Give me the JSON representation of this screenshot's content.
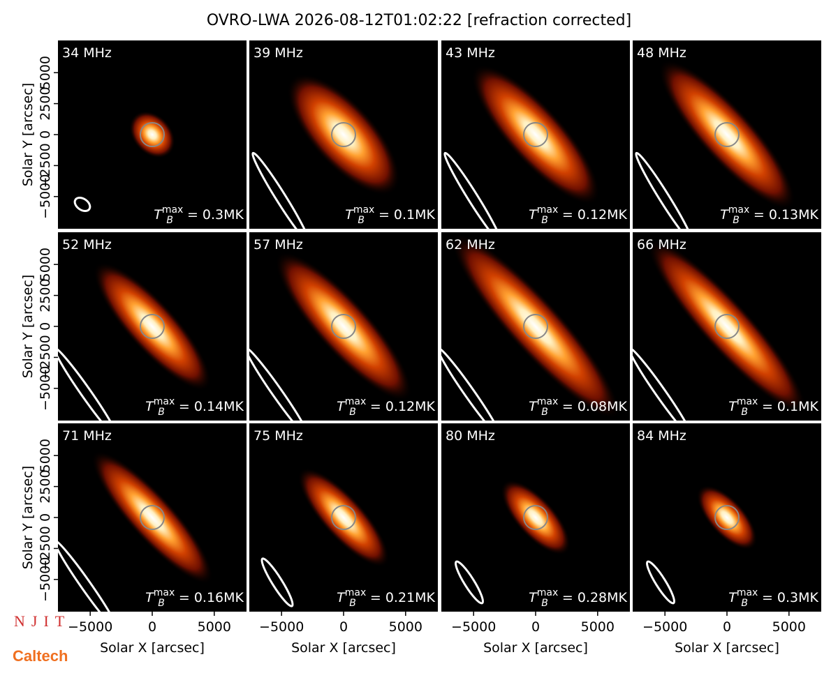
{
  "chart_data": {
    "type": "image-grid",
    "title": "OVRO-LWA 2026-08-12T01:02:22 [refraction corrected]",
    "xlabel": "Solar X [arcsec]",
    "ylabel": "Solar Y [arcsec]",
    "xlim": [
      -7600,
      7600
    ],
    "ylim": [
      -7600,
      7600
    ],
    "xticks": [
      {
        "value": -5000,
        "label": "−5000"
      },
      0,
      5000
    ],
    "yticks": [
      {
        "value": -5000,
        "label": "−5000"
      },
      {
        "value": -2500,
        "label": "−2500"
      },
      0,
      2500,
      5000
    ],
    "tb_symbol": {
      "base": "T",
      "sub": "B",
      "sup": "max"
    },
    "panels": [
      {
        "label": "34 MHz",
        "annotation": "= 0.3MK"
      },
      {
        "label": "39 MHz",
        "annotation": "= 0.1MK"
      },
      {
        "label": "43 MHz",
        "annotation": "= 0.12MK"
      },
      {
        "label": "48 MHz",
        "annotation": "= 0.13MK"
      },
      {
        "label": "52 MHz",
        "annotation": "= 0.14MK"
      },
      {
        "label": "57 MHz",
        "annotation": "= 0.12MK"
      },
      {
        "label": "62 MHz",
        "annotation": "= 0.08MK"
      },
      {
        "label": "66 MHz",
        "annotation": "= 0.1MK"
      },
      {
        "label": "71 MHz",
        "annotation": "= 0.16MK"
      },
      {
        "label": "75 MHz",
        "annotation": "= 0.21MK"
      },
      {
        "label": "80 MHz",
        "annotation": "= 0.28MK"
      },
      {
        "label": "84 MHz",
        "annotation": "= 0.3MK"
      }
    ],
    "logos": [
      "NJIT",
      "Caltech"
    ]
  }
}
